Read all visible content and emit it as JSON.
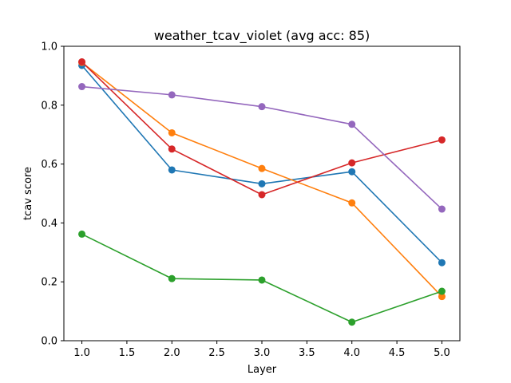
{
  "chart_data": {
    "type": "line",
    "title": "weather_tcav_violet (avg acc: 85)",
    "xlabel": "Layer",
    "ylabel": "tcav score",
    "xlim": [
      0.8,
      5.2
    ],
    "ylim": [
      0.0,
      1.0
    ],
    "xticks": [
      1.0,
      1.5,
      2.0,
      2.5,
      3.0,
      3.5,
      4.0,
      4.5,
      5.0
    ],
    "xtick_labels": [
      "1.0",
      "1.5",
      "2.0",
      "2.5",
      "3.0",
      "3.5",
      "4.0",
      "4.5",
      "5.0"
    ],
    "yticks": [
      0.0,
      0.2,
      0.4,
      0.6,
      0.8,
      1.0
    ],
    "ytick_labels": [
      "0.0",
      "0.2",
      "0.4",
      "0.6",
      "0.8",
      "1.0"
    ],
    "grid": false,
    "x": [
      1,
      2,
      3,
      4,
      5
    ],
    "series": [
      {
        "color": "#1f77b4",
        "values": [
          0.935,
          0.58,
          0.533,
          0.574,
          0.265
        ]
      },
      {
        "color": "#ff7f0e",
        "values": [
          0.945,
          0.706,
          0.585,
          0.468,
          0.15
        ]
      },
      {
        "color": "#2ca02c",
        "values": [
          0.362,
          0.211,
          0.206,
          0.063,
          0.168
        ]
      },
      {
        "color": "#d62728",
        "values": [
          0.947,
          0.651,
          0.496,
          0.604,
          0.682
        ]
      },
      {
        "color": "#9467bd",
        "values": [
          0.863,
          0.835,
          0.795,
          0.735,
          0.447
        ]
      }
    ]
  }
}
